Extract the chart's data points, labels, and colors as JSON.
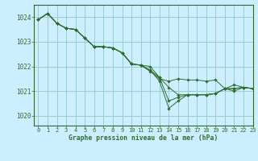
{
  "title": "Graphe pression niveau de la mer (hPa)",
  "bg_color": "#cceeff",
  "grid_color": "#99cccc",
  "line_color": "#2d6e2d",
  "border_color": "#336633",
  "xlim": [
    -0.5,
    23
  ],
  "ylim": [
    1019.6,
    1024.5
  ],
  "yticks": [
    1020,
    1021,
    1022,
    1023,
    1024
  ],
  "xticks": [
    0,
    1,
    2,
    3,
    4,
    5,
    6,
    7,
    8,
    9,
    10,
    11,
    12,
    13,
    14,
    15,
    16,
    17,
    18,
    19,
    20,
    21,
    22,
    23
  ],
  "series": [
    [
      1023.9,
      1024.15,
      1023.75,
      1023.55,
      1023.5,
      1023.15,
      1022.8,
      1022.8,
      1022.75,
      1022.55,
      1022.1,
      1022.05,
      1021.8,
      1021.5,
      1021.4,
      1021.5,
      1021.45,
      1021.45,
      1021.4,
      1021.45,
      1021.1,
      1021.25,
      1021.15,
      1021.1
    ],
    [
      1023.9,
      1024.15,
      1023.75,
      1023.55,
      1023.5,
      1023.15,
      1022.8,
      1022.8,
      1022.75,
      1022.55,
      1022.1,
      1022.05,
      1022.0,
      1021.55,
      1021.15,
      1020.85,
      1020.85,
      1020.85,
      1020.85,
      1020.9,
      1021.1,
      1021.1,
      1021.15,
      1021.1
    ],
    [
      1023.9,
      1024.15,
      1023.75,
      1023.55,
      1023.5,
      1023.15,
      1022.8,
      1022.8,
      1022.75,
      1022.55,
      1022.1,
      1022.05,
      1021.85,
      1021.55,
      1020.6,
      1020.75,
      1020.85,
      1020.85,
      1020.85,
      1020.9,
      1021.1,
      1021.1,
      1021.15,
      1021.1
    ],
    [
      1023.9,
      1024.15,
      1023.75,
      1023.55,
      1023.5,
      1023.15,
      1022.8,
      1022.8,
      1022.75,
      1022.55,
      1022.1,
      1022.05,
      1021.85,
      1021.4,
      1020.3,
      1020.6,
      1020.85,
      1020.85,
      1020.85,
      1020.9,
      1021.1,
      1021.0,
      1021.15,
      1021.1
    ]
  ]
}
